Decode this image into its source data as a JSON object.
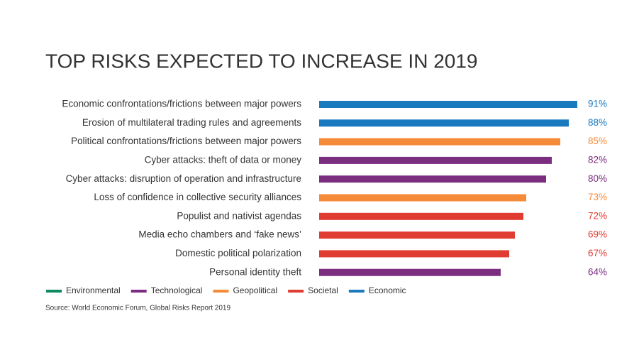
{
  "chart_data": {
    "type": "bar",
    "orientation": "horizontal",
    "title": "TOP RISKS EXPECTED TO INCREASE IN 2019",
    "categories": [
      "Economic confrontations/frictions between major powers",
      "Erosion of multilateral trading rules and agreements",
      "Political confrontations/frictions between major powers",
      "Cyber attacks: theft of data or money",
      "Cyber attacks: disruption of operation and infrastructure",
      "Loss of confidence in collective security alliances",
      "Populist and nativist agendas",
      "Media echo chambers and ‘fake news’",
      "Domestic political polarization",
      "Personal identity theft"
    ],
    "series": [
      {
        "name": "Environmental",
        "color": "#0f8a5f",
        "values": [
          null,
          null,
          null,
          null,
          null,
          null,
          null,
          null,
          null,
          null
        ],
        "value_labels": [
          null,
          null,
          null,
          null,
          null,
          null,
          null,
          null,
          null,
          null
        ]
      },
      {
        "name": "Technological",
        "color": "#7b2d7f",
        "values": [
          null,
          null,
          null,
          82,
          80,
          null,
          null,
          null,
          null,
          64
        ],
        "value_labels": [
          null,
          null,
          null,
          "82%",
          "80%",
          null,
          null,
          null,
          null,
          "64%"
        ]
      },
      {
        "name": "Geopolitical",
        "color": "#f58a38",
        "values": [
          null,
          null,
          85,
          null,
          null,
          73,
          null,
          null,
          null,
          null
        ],
        "value_labels": [
          null,
          null,
          "85%",
          null,
          null,
          "73%",
          null,
          null,
          null,
          null
        ]
      },
      {
        "name": "Societal",
        "color": "#e03c31",
        "values": [
          null,
          null,
          null,
          null,
          null,
          null,
          72,
          69,
          67,
          null
        ],
        "value_labels": [
          null,
          null,
          null,
          null,
          null,
          null,
          "72%",
          "69%",
          "67%",
          null
        ]
      },
      {
        "name": "Economic",
        "color": "#1a7abf",
        "values": [
          91,
          88,
          null,
          null,
          null,
          null,
          null,
          null,
          null,
          null
        ],
        "value_labels": [
          "91%",
          "88%",
          null,
          null,
          null,
          null,
          null,
          null,
          null,
          null
        ]
      }
    ],
    "source": "Source: World Economic Forum, Global Risks Report 2019"
  }
}
